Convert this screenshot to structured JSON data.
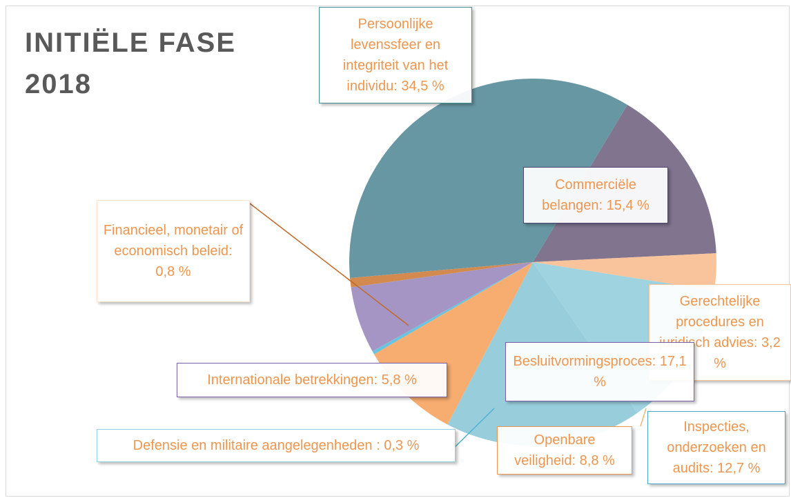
{
  "chart_data": {
    "type": "pie",
    "title": "INITIËLE FASE",
    "subtitle": "2018",
    "start_angle": 31,
    "categories": [
      "Commerciële belangen:",
      "Gerechtelijke procedures en juridisch advies:",
      "Inspecties, onderzoeken en audits:",
      "Besluitvormingsproces:",
      "Openbare veiligheid:",
      "Defensie en militaire aangelegenheden :",
      "Internationale betrekkingen:",
      "Financieel, monetair of economisch beleid:",
      "Persoonlijke levenssfeer en integriteit van het individu:"
    ],
    "values": [
      15.4,
      3.2,
      12.7,
      17.1,
      8.8,
      0.3,
      5.8,
      0.8,
      34.5
    ],
    "value_labels": [
      "15,4 %",
      "3,2 %",
      "12,7 %",
      "17,1 %",
      "8,8 %",
      "0,3 %",
      "5,8 %",
      "0,8 %",
      "34,5 %"
    ],
    "colors": [
      "#80748f",
      "#f9c49b",
      "#9fd3e0",
      "#98cedc",
      "#f7ad70",
      "#6cc3de",
      "#a595c5",
      "#d38a4e",
      "#6897a4"
    ]
  }
}
